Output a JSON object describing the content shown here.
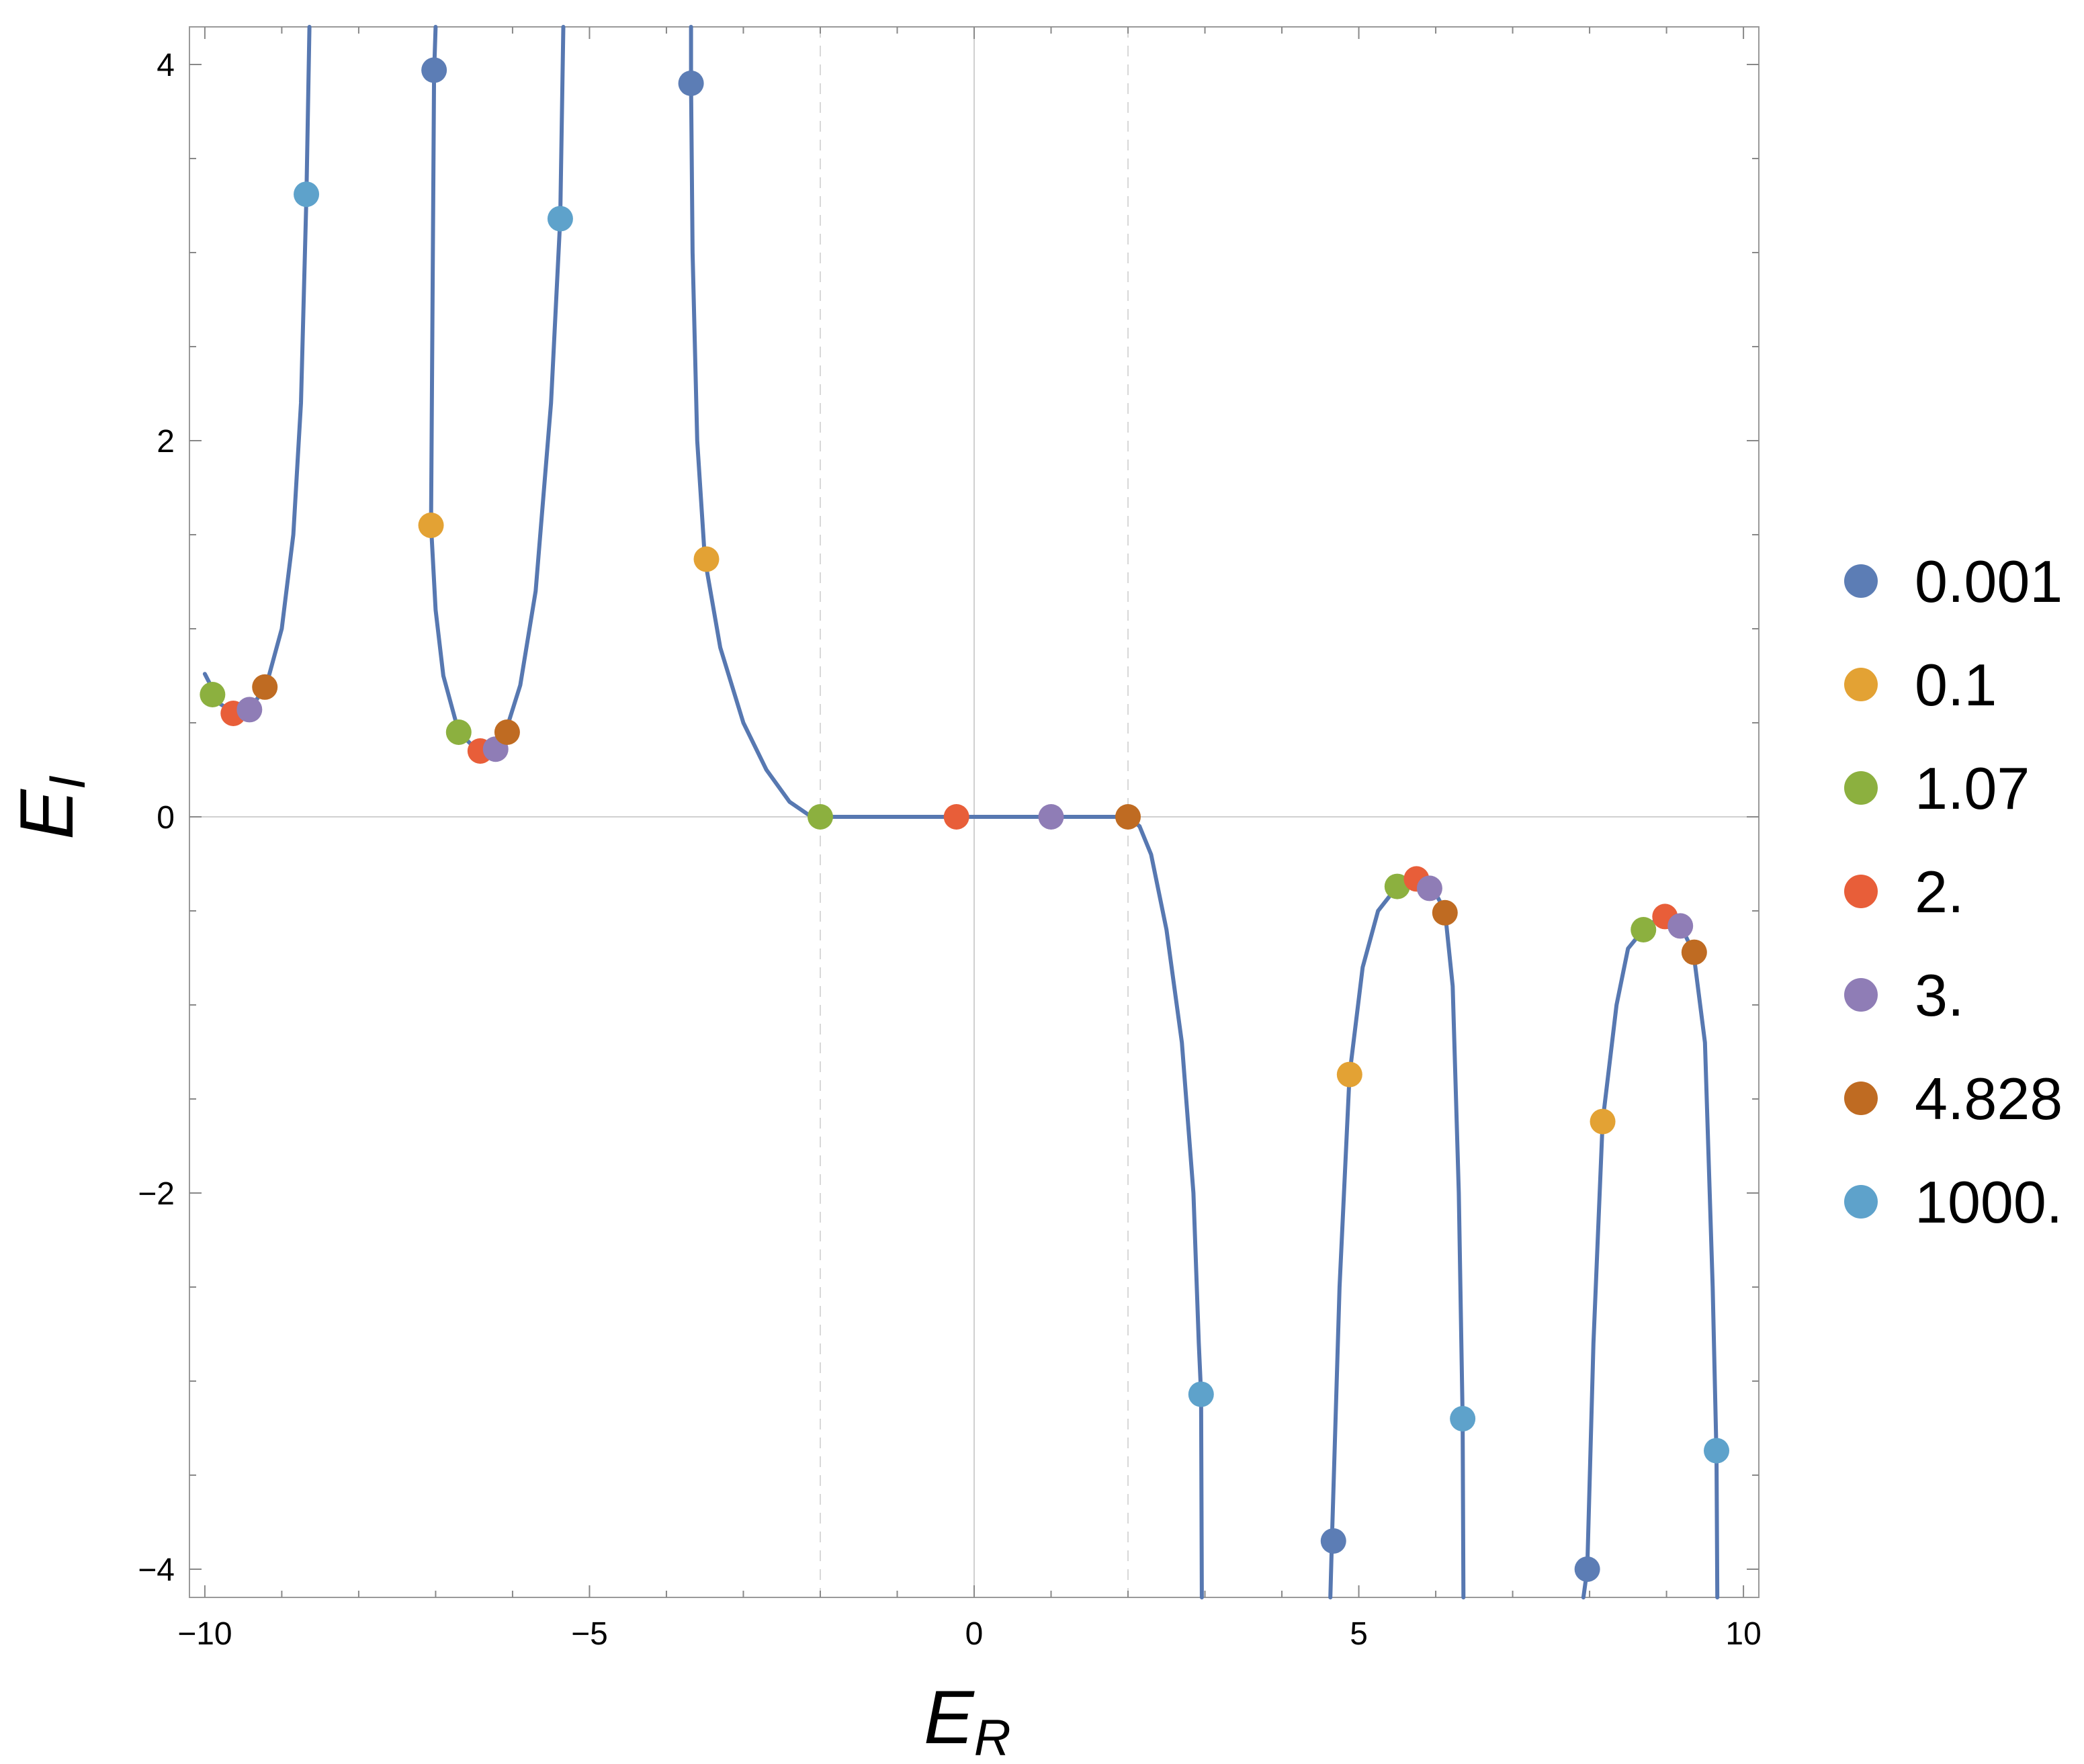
{
  "chart_data": {
    "type": "scatter",
    "xlabel": {
      "main": "E",
      "sub": "R"
    },
    "ylabel": {
      "main": "E",
      "sub": "I"
    },
    "xlim": [
      -10.2,
      10.2
    ],
    "ylim": [
      -4.15,
      4.2
    ],
    "x_ticks": [
      -10,
      -5,
      0,
      5,
      10
    ],
    "y_ticks": [
      -4,
      -2,
      0,
      2,
      4
    ],
    "x_tick_labels": [
      "−10",
      "−5",
      "0",
      "5",
      "10"
    ],
    "y_tick_labels": [
      "−4",
      "−2",
      "0",
      "2",
      "4"
    ],
    "grid": false,
    "reference_lines": {
      "x0": true,
      "y0": true,
      "dashed_x": [
        -2,
        2
      ]
    },
    "legend_position": "right",
    "curve": {
      "color": "#5778B1",
      "branches": [
        [
          [
            -10,
            0.76
          ],
          [
            -9.8,
            0.6
          ],
          [
            -9.6,
            0.55
          ],
          [
            -9.4,
            0.58
          ],
          [
            -9.2,
            0.7
          ],
          [
            -9.0,
            1.0
          ],
          [
            -8.85,
            1.5
          ],
          [
            -8.75,
            2.2
          ],
          [
            -8.68,
            3.3
          ],
          [
            -8.64,
            4.2
          ]
        ],
        [
          [
            -7.0,
            4.2
          ],
          [
            -7.02,
            3.95
          ],
          [
            -7.06,
            1.55
          ],
          [
            -7.0,
            1.1
          ],
          [
            -6.9,
            0.75
          ],
          [
            -6.7,
            0.45
          ],
          [
            -6.5,
            0.37
          ],
          [
            -6.3,
            0.36
          ],
          [
            -6.1,
            0.44
          ],
          [
            -5.9,
            0.7
          ],
          [
            -5.7,
            1.2
          ],
          [
            -5.5,
            2.2
          ],
          [
            -5.38,
            3.18
          ],
          [
            -5.34,
            4.2
          ]
        ],
        [
          [
            -3.68,
            4.2
          ],
          [
            -3.68,
            3.9
          ],
          [
            -3.66,
            3.0
          ],
          [
            -3.6,
            2.0
          ],
          [
            -3.5,
            1.37
          ],
          [
            -3.3,
            0.9
          ],
          [
            -3.0,
            0.5
          ],
          [
            -2.7,
            0.25
          ],
          [
            -2.4,
            0.08
          ],
          [
            -2.15,
            0.01
          ],
          [
            -2.0,
            0.0
          ],
          [
            2.0,
            0.0
          ],
          [
            2.15,
            -0.05
          ],
          [
            2.3,
            -0.2
          ],
          [
            2.5,
            -0.6
          ],
          [
            2.7,
            -1.2
          ],
          [
            2.85,
            -2.0
          ],
          [
            2.92,
            -2.8
          ],
          [
            2.95,
            -3.07
          ],
          [
            2.96,
            -4.15
          ]
        ],
        [
          [
            4.63,
            -4.15
          ],
          [
            4.65,
            -3.85
          ],
          [
            4.75,
            -2.5
          ],
          [
            4.88,
            -1.37
          ],
          [
            5.05,
            -0.8
          ],
          [
            5.25,
            -0.5
          ],
          [
            5.5,
            -0.37
          ],
          [
            5.75,
            -0.32
          ],
          [
            5.95,
            -0.37
          ],
          [
            6.12,
            -0.5
          ],
          [
            6.22,
            -0.9
          ],
          [
            6.3,
            -2.0
          ],
          [
            6.35,
            -3.2
          ],
          [
            6.36,
            -4.15
          ]
        ],
        [
          [
            7.92,
            -4.15
          ],
          [
            7.97,
            -4.0
          ],
          [
            8.05,
            -2.8
          ],
          [
            8.17,
            -1.62
          ],
          [
            8.35,
            -1.0
          ],
          [
            8.5,
            -0.7
          ],
          [
            8.7,
            -0.6
          ],
          [
            8.95,
            -0.52
          ],
          [
            9.15,
            -0.55
          ],
          [
            9.35,
            -0.72
          ],
          [
            9.5,
            -1.2
          ],
          [
            9.6,
            -2.5
          ],
          [
            9.65,
            -3.4
          ],
          [
            9.66,
            -4.15
          ]
        ]
      ]
    },
    "series": [
      {
        "name": "0.001",
        "color": "#5C7DB5",
        "points": [
          [
            -7.02,
            3.97
          ],
          [
            -3.68,
            3.9
          ],
          [
            4.67,
            -3.85
          ],
          [
            7.97,
            -4.0
          ]
        ]
      },
      {
        "name": "0.1",
        "color": "#E3A234",
        "points": [
          [
            -7.06,
            1.55
          ],
          [
            -3.48,
            1.37
          ],
          [
            4.88,
            -1.37
          ],
          [
            8.17,
            -1.62
          ]
        ]
      },
      {
        "name": "1.07",
        "color": "#8CB03F",
        "points": [
          [
            -9.9,
            0.65
          ],
          [
            -6.7,
            0.45
          ],
          [
            -2.0,
            0.0
          ],
          [
            5.5,
            -0.37
          ],
          [
            8.7,
            -0.6
          ]
        ]
      },
      {
        "name": "2.",
        "color": "#E85E39",
        "points": [
          [
            -9.63,
            0.55
          ],
          [
            -6.42,
            0.35
          ],
          [
            -0.23,
            0.0
          ],
          [
            5.75,
            -0.33
          ],
          [
            8.98,
            -0.53
          ]
        ]
      },
      {
        "name": "3.",
        "color": "#8F7DB6",
        "points": [
          [
            -9.42,
            0.57
          ],
          [
            -6.22,
            0.36
          ],
          [
            1.0,
            0.0
          ],
          [
            5.92,
            -0.38
          ],
          [
            9.18,
            -0.58
          ]
        ]
      },
      {
        "name": "4.828",
        "color": "#BF6B22",
        "points": [
          [
            -9.22,
            0.69
          ],
          [
            -6.07,
            0.45
          ],
          [
            2.0,
            0.0
          ],
          [
            6.12,
            -0.51
          ],
          [
            9.36,
            -0.72
          ]
        ]
      },
      {
        "name": "1000.",
        "color": "#5EA2CB",
        "points": [
          [
            -8.68,
            3.31
          ],
          [
            -5.38,
            3.18
          ],
          [
            2.95,
            -3.07
          ],
          [
            6.35,
            -3.2
          ],
          [
            9.65,
            -3.37
          ]
        ]
      }
    ]
  }
}
